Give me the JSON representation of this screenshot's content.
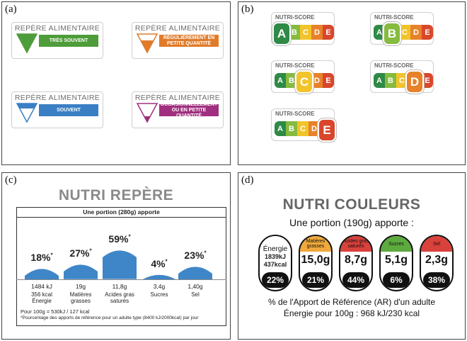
{
  "panels": {
    "a": {
      "label": "(a)",
      "cards": [
        {
          "title": "REPÈRE ALIMENTAIRE",
          "text": "TRÈS SOUVENT",
          "color": "#4e9c3a",
          "fill": "full"
        },
        {
          "title": "REPÈRE ALIMENTAIRE",
          "text": "RÉGULIÈREMENT EN PETITE QUANTITÉ",
          "color": "#e07b2a",
          "fill": "two-thirds"
        },
        {
          "title": "REPÈRE ALIMENTAIRE",
          "text": "SOUVENT",
          "color": "#3a7fc4",
          "fill": "one-third"
        },
        {
          "title": "REPÈRE ALIMENTAIRE",
          "text": "OCCASIONNELLEMENT OU EN PETITE QUANTITÉ",
          "color": "#a0307f",
          "fill": "tip"
        }
      ]
    },
    "b": {
      "label": "(b)",
      "title": "NUTRI-SCORE",
      "letters": [
        "A",
        "B",
        "C",
        "D",
        "E"
      ],
      "colors": [
        "#2f8a46",
        "#86bb3f",
        "#f2c42b",
        "#e8822a",
        "#d9472b"
      ],
      "selected": [
        "A",
        "B",
        "C",
        "D",
        "E"
      ]
    },
    "c": {
      "label": "(c)",
      "title": "NUTRI REPÈRE",
      "subtitle": "Une portion (280g) apporte",
      "items": [
        {
          "percent": "18%",
          "qty": "1484 kJ",
          "name": "356 kcal Énergie",
          "fill": 0.18
        },
        {
          "percent": "27%",
          "qty": "19g",
          "name": "Matières grasses",
          "fill": 0.27
        },
        {
          "percent": "59%",
          "qty": "11,8g",
          "name": "Acides gras saturés",
          "fill": 0.59
        },
        {
          "percent": "4%",
          "qty": "3,4g",
          "name": "Sucres",
          "fill": 0.04
        },
        {
          "percent": "23%",
          "qty": "1,40g",
          "name": "Sel",
          "fill": 0.23
        }
      ],
      "star": "*",
      "footnote1": "Pour 100g  = 530kJ / 127 kcal",
      "footnote2": "*Pourcentage des apports de référence pour un adulte type (8400 kJ/2000kcal) par jour",
      "bar_color": "#3f86c8"
    },
    "d": {
      "label": "(d)",
      "title": "NUTRI COULEURS",
      "subtitle": "Une portion (190g) apporte :",
      "items": [
        {
          "head": "Énergie",
          "value1": "1839kJ",
          "value2": "437kcal",
          "percent": "22%",
          "color": "#ffffff"
        },
        {
          "head": "Matières grasses",
          "value": "15,0g",
          "percent": "21%",
          "color": "#f0a93a"
        },
        {
          "head": "Acides gras saturés",
          "value": "8,7g",
          "percent": "44%",
          "color": "#d9413b"
        },
        {
          "head": "Sucres",
          "value": "5,1g",
          "percent": "6%",
          "color": "#5daa3f"
        },
        {
          "head": "Sel",
          "value": "2,3g",
          "percent": "38%",
          "color": "#d9413b"
        }
      ],
      "footer1": "% de l'Apport de Référence (AR) d'un adulte",
      "footer2": "Énergie pour 100g : 968 kJ/230 kcal"
    }
  }
}
